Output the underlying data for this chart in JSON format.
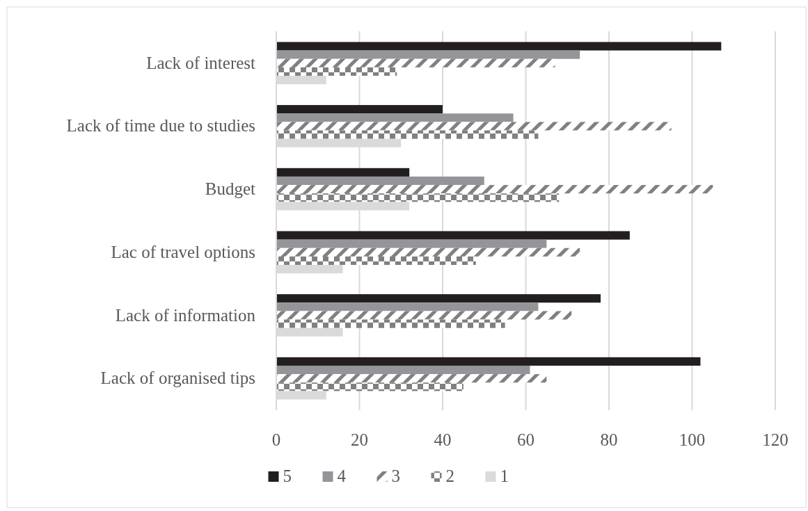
{
  "chart_data": {
    "type": "bar",
    "orientation": "horizontal",
    "categories": [
      "Lack of interest",
      "Lack of time due to studies",
      "Budget",
      "Lac of travel options",
      "Lack of information",
      "Lack of organised tips"
    ],
    "series": [
      {
        "name": "5",
        "color": "#231f20",
        "values": [
          107,
          40,
          32,
          85,
          78,
          102
        ]
      },
      {
        "name": "4",
        "color": "#939598",
        "values": [
          73,
          57,
          50,
          65,
          63,
          61
        ]
      },
      {
        "name": "3",
        "color": "#808080",
        "values": [
          67,
          95,
          105,
          73,
          71,
          65
        ]
      },
      {
        "name": "2",
        "color": "#808080",
        "values": [
          29,
          63,
          68,
          48,
          55,
          45
        ]
      },
      {
        "name": "1",
        "color": "#d9dadb",
        "values": [
          12,
          30,
          32,
          16,
          16,
          12
        ]
      }
    ],
    "xlim": [
      0,
      120
    ],
    "xticks": [
      0,
      20,
      40,
      60,
      80,
      100,
      120
    ],
    "grid": "x",
    "legend": "bottom"
  }
}
